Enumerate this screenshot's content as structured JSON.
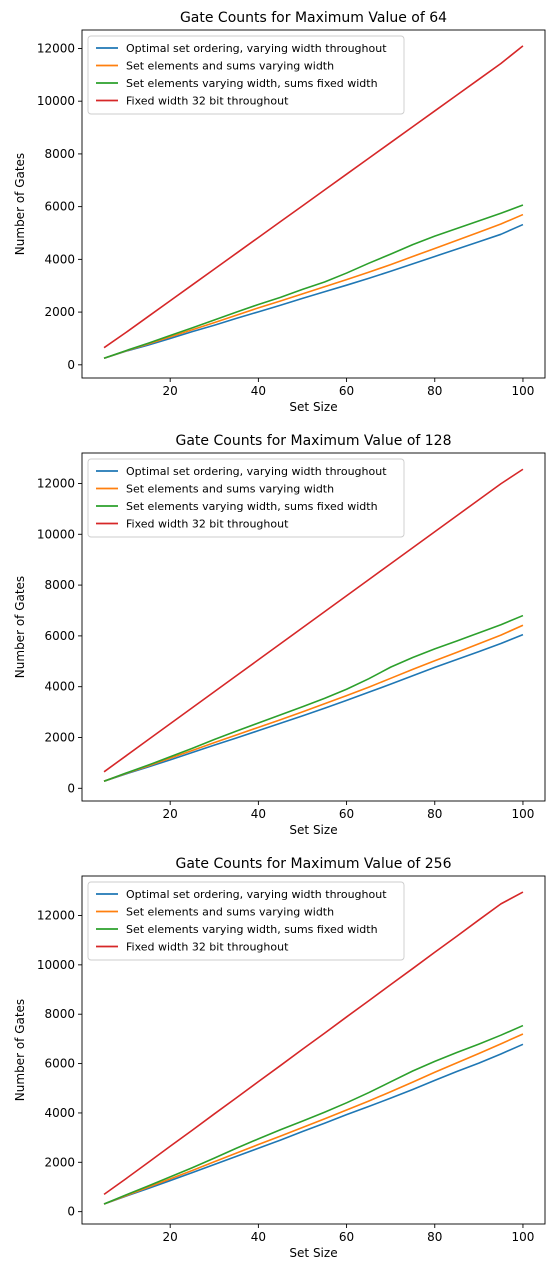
{
  "colors": {
    "blue": "#1f77b4",
    "orange": "#ff7f0e",
    "green": "#2ca02c",
    "red": "#d62728"
  },
  "chart_data": [
    {
      "type": "line",
      "title": "Gate Counts for Maximum Value of 64",
      "xlabel": "Set Size",
      "ylabel": "Number of Gates",
      "xlim": [
        0,
        105
      ],
      "ylim": [
        -500,
        12700
      ],
      "xticks": [
        20,
        40,
        60,
        80,
        100
      ],
      "yticks": [
        0,
        2000,
        4000,
        6000,
        8000,
        10000,
        12000
      ],
      "grid": false,
      "legend_position": "top-left",
      "x": [
        5,
        10,
        15,
        20,
        25,
        30,
        35,
        40,
        45,
        50,
        55,
        60,
        65,
        70,
        75,
        80,
        85,
        90,
        95,
        100
      ],
      "series": [
        {
          "name": "Optimal set ordering, varying width throughout",
          "color": "#1f77b4",
          "values": [
            250,
            520,
            750,
            1000,
            1260,
            1500,
            1760,
            2010,
            2260,
            2520,
            2770,
            3020,
            3280,
            3550,
            3830,
            4110,
            4390,
            4670,
            4950,
            5320
          ]
        },
        {
          "name": "Set elements and sums varying width",
          "color": "#ff7f0e",
          "values": [
            250,
            530,
            790,
            1060,
            1330,
            1600,
            1880,
            2160,
            2420,
            2690,
            2960,
            3230,
            3510,
            3800,
            4110,
            4410,
            4720,
            5030,
            5340,
            5700
          ]
        },
        {
          "name": "Set elements varying width, sums fixed width",
          "color": "#2ca02c",
          "values": [
            250,
            540,
            820,
            1110,
            1400,
            1700,
            2000,
            2290,
            2560,
            2860,
            3140,
            3480,
            3850,
            4200,
            4560,
            4880,
            5170,
            5460,
            5750,
            6060
          ]
        },
        {
          "name": "Fixed width 32 bit throughout",
          "color": "#d62728",
          "values": [
            650,
            1230,
            1830,
            2430,
            3030,
            3630,
            4230,
            4830,
            5430,
            6030,
            6630,
            7230,
            7830,
            8430,
            9030,
            9630,
            10230,
            10830,
            11430,
            12100
          ]
        }
      ]
    },
    {
      "type": "line",
      "title": "Gate Counts for Maximum Value of 128",
      "xlabel": "Set Size",
      "ylabel": "Number of Gates",
      "xlim": [
        0,
        105
      ],
      "ylim": [
        -500,
        13200
      ],
      "xticks": [
        20,
        40,
        60,
        80,
        100
      ],
      "yticks": [
        0,
        2000,
        4000,
        6000,
        8000,
        10000,
        12000
      ],
      "grid": false,
      "legend_position": "top-left",
      "x": [
        5,
        10,
        15,
        20,
        25,
        30,
        35,
        40,
        45,
        50,
        55,
        60,
        65,
        70,
        75,
        80,
        85,
        90,
        95,
        100
      ],
      "series": [
        {
          "name": "Optimal set ordering, varying width throughout",
          "color": "#1f77b4",
          "values": [
            280,
            570,
            840,
            1120,
            1410,
            1700,
            1980,
            2270,
            2560,
            2850,
            3150,
            3460,
            3780,
            4100,
            4430,
            4760,
            5070,
            5380,
            5700,
            6050
          ]
        },
        {
          "name": "Set elements and sums varying width",
          "color": "#ff7f0e",
          "values": [
            280,
            590,
            880,
            1190,
            1490,
            1800,
            2100,
            2400,
            2700,
            3010,
            3330,
            3650,
            3980,
            4330,
            4680,
            5020,
            5350,
            5690,
            6030,
            6420
          ]
        },
        {
          "name": "Set elements varying width, sums fixed width",
          "color": "#2ca02c",
          "values": [
            280,
            600,
            910,
            1240,
            1570,
            1920,
            2250,
            2570,
            2890,
            3210,
            3540,
            3900,
            4310,
            4770,
            5150,
            5490,
            5800,
            6120,
            6440,
            6800
          ]
        },
        {
          "name": "Fixed width 32 bit throughout",
          "color": "#d62728",
          "values": [
            650,
            1280,
            1910,
            2540,
            3170,
            3800,
            4430,
            5060,
            5690,
            6320,
            6950,
            7580,
            8210,
            8840,
            9470,
            10100,
            10730,
            11360,
            11990,
            12560
          ]
        }
      ]
    },
    {
      "type": "line",
      "title": "Gate Counts for Maximum Value of 256",
      "xlabel": "Set Size",
      "ylabel": "Number of Gates",
      "xlim": [
        0,
        105
      ],
      "ylim": [
        -500,
        13600
      ],
      "xticks": [
        20,
        40,
        60,
        80,
        100
      ],
      "yticks": [
        0,
        2000,
        4000,
        6000,
        8000,
        10000,
        12000
      ],
      "grid": false,
      "legend_position": "top-left",
      "x": [
        5,
        10,
        15,
        20,
        25,
        30,
        35,
        40,
        45,
        50,
        55,
        60,
        65,
        70,
        75,
        80,
        85,
        90,
        95,
        100
      ],
      "series": [
        {
          "name": "Optimal set ordering, varying width throughout",
          "color": "#1f77b4",
          "values": [
            310,
            630,
            940,
            1260,
            1580,
            1910,
            2240,
            2570,
            2900,
            3250,
            3580,
            3930,
            4260,
            4600,
            4950,
            5320,
            5680,
            6020,
            6390,
            6780
          ]
        },
        {
          "name": "Set elements and sums varying width",
          "color": "#ff7f0e",
          "values": [
            310,
            650,
            990,
            1330,
            1670,
            2020,
            2370,
            2720,
            3060,
            3410,
            3760,
            4120,
            4480,
            4860,
            5250,
            5650,
            6030,
            6410,
            6800,
            7200
          ]
        },
        {
          "name": "Set elements varying width, sums fixed width",
          "color": "#2ca02c",
          "values": [
            310,
            680,
            1040,
            1410,
            1780,
            2170,
            2570,
            2950,
            3320,
            3670,
            4030,
            4410,
            4820,
            5260,
            5700,
            6090,
            6450,
            6790,
            7150,
            7540
          ]
        },
        {
          "name": "Fixed width 32 bit throughout",
          "color": "#d62728",
          "values": [
            700,
            1340,
            1990,
            2650,
            3300,
            3960,
            4610,
            5270,
            5920,
            6580,
            7230,
            7890,
            8540,
            9200,
            9850,
            10510,
            11160,
            11820,
            12470,
            12950
          ]
        }
      ]
    }
  ]
}
